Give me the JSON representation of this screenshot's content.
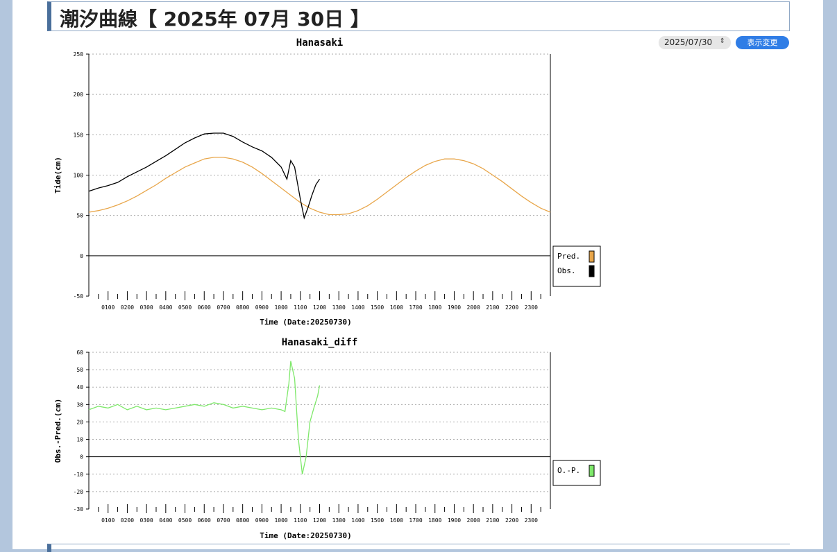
{
  "header": {
    "title": "潮汐曲線【 2025年 07月 30日 】"
  },
  "controls": {
    "date_value": "2025/07/30",
    "date_arrow": "⌃⌄",
    "change_label": "表示変更"
  },
  "chart_data": [
    {
      "type": "line",
      "title": "Hanasaki",
      "xlabel": "Time (Date:20250730)",
      "ylabel": "Tide(cm)",
      "xlim": [
        0,
        24
      ],
      "ylim": [
        -50,
        250
      ],
      "yticks": [
        250,
        200,
        150,
        100,
        50,
        0,
        -50
      ],
      "xtick_labels": [
        "0100",
        "0200",
        "0300",
        "0400",
        "0500",
        "0600",
        "0700",
        "0800",
        "0900",
        "1000",
        "1100",
        "1200",
        "1300",
        "1400",
        "1500",
        "1600",
        "1700",
        "1800",
        "1900",
        "2000",
        "2100",
        "2200",
        "2300"
      ],
      "grid": true,
      "legend_position": "right",
      "series": [
        {
          "name": "Pred.",
          "color": "#e8a64a",
          "x": [
            0,
            0.5,
            1,
            1.5,
            2,
            2.5,
            3,
            3.5,
            4,
            4.5,
            5,
            5.5,
            6,
            6.5,
            7,
            7.5,
            8,
            8.5,
            9,
            9.5,
            10,
            10.5,
            11,
            11.5,
            12,
            12.5,
            13,
            13.5,
            14,
            14.5,
            15,
            15.5,
            16,
            16.5,
            17,
            17.5,
            18,
            18.5,
            19,
            19.5,
            20,
            20.5,
            21,
            21.5,
            22,
            22.5,
            23,
            23.5,
            24
          ],
          "values": [
            54,
            56,
            59,
            63,
            68,
            74,
            81,
            88,
            96,
            103,
            110,
            115,
            120,
            122,
            122,
            120,
            116,
            110,
            102,
            93,
            84,
            75,
            66,
            59,
            54,
            51,
            51,
            52,
            56,
            62,
            70,
            79,
            88,
            97,
            105,
            112,
            117,
            120,
            120,
            118,
            114,
            108,
            100,
            92,
            83,
            74,
            66,
            59,
            54
          ]
        },
        {
          "name": "Obs.",
          "color": "#000000",
          "x": [
            0,
            0.5,
            1,
            1.5,
            2,
            2.5,
            3,
            3.5,
            4,
            4.5,
            5,
            5.5,
            6,
            6.5,
            7,
            7.5,
            8,
            8.5,
            9,
            9.5,
            10,
            10.3,
            10.5,
            10.7,
            11,
            11.2,
            11.4,
            11.6,
            11.8,
            12
          ],
          "values": [
            80,
            84,
            87,
            91,
            98,
            104,
            110,
            117,
            124,
            132,
            140,
            146,
            151,
            152,
            152,
            148,
            141,
            135,
            130,
            122,
            110,
            95,
            118,
            110,
            70,
            47,
            60,
            75,
            88,
            95
          ]
        }
      ]
    },
    {
      "type": "line",
      "title": "Hanasaki_diff",
      "xlabel": "Time (Date:20250730)",
      "ylabel": "Obs.-Pred.(cm)",
      "xlim": [
        0,
        24
      ],
      "ylim": [
        -30,
        60
      ],
      "yticks": [
        60,
        50,
        40,
        30,
        20,
        10,
        0,
        -10,
        -20,
        -30
      ],
      "xtick_labels": [
        "0100",
        "0200",
        "0300",
        "0400",
        "0500",
        "0600",
        "0700",
        "0800",
        "0900",
        "1000",
        "1100",
        "1200",
        "1300",
        "1400",
        "1500",
        "1600",
        "1700",
        "1800",
        "1900",
        "2000",
        "2100",
        "2200",
        "2300"
      ],
      "grid": true,
      "legend_position": "right",
      "series": [
        {
          "name": "O.-P.",
          "color": "#7ee86a",
          "x": [
            0,
            0.5,
            1,
            1.5,
            2,
            2.5,
            3,
            3.5,
            4,
            4.5,
            5,
            5.5,
            6,
            6.5,
            7,
            7.5,
            8,
            8.5,
            9,
            9.5,
            10,
            10.2,
            10.4,
            10.5,
            10.7,
            10.9,
            11.1,
            11.3,
            11.5,
            11.7,
            11.9,
            12
          ],
          "values": [
            27,
            29,
            28,
            30,
            27,
            29,
            27,
            28,
            27,
            28,
            29,
            30,
            29,
            31,
            30,
            28,
            29,
            28,
            27,
            28,
            27,
            26,
            42,
            55,
            45,
            10,
            -10,
            0,
            20,
            28,
            35,
            41
          ]
        }
      ]
    }
  ]
}
